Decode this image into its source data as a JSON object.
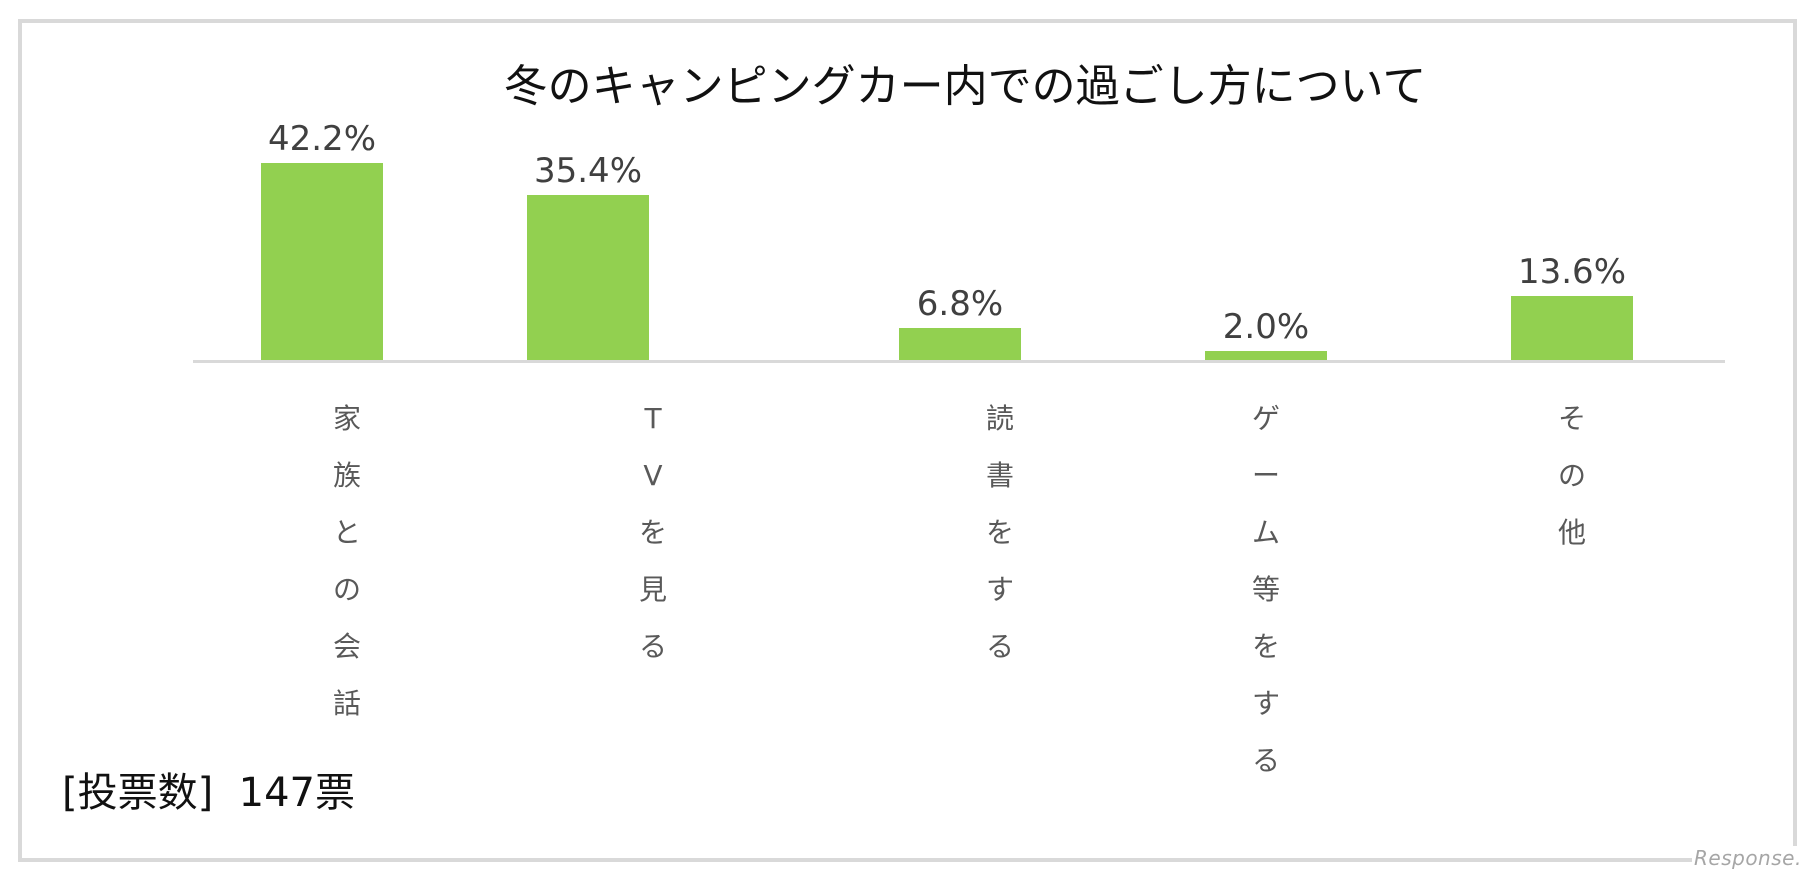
{
  "chart_data": {
    "type": "bar",
    "title": "冬のキャンピングカー内での過ごし方について",
    "categories": [
      "家族との会話",
      "TVを見る",
      "読書をする",
      "ゲーム等をする",
      "その他"
    ],
    "values": [
      42.2,
      35.4,
      6.8,
      2.0,
      13.6
    ],
    "value_labels": [
      "42.2%",
      "35.4%",
      "6.8%",
      "2.0%",
      "13.6%"
    ],
    "unit": "%",
    "xlabel": "",
    "ylabel": "",
    "ylim": [
      0,
      45
    ],
    "grid": false,
    "legend": null,
    "bar_color": "#92d050",
    "label_orientation": "vertical",
    "annotations": [
      "[投票数]  147票"
    ]
  },
  "chart": {
    "title": "冬のキャンピングカー内での過ごし方について",
    "bars": [
      {
        "label_chars": [
          "家",
          "族",
          "と",
          "の",
          "会",
          "話"
        ],
        "value_label": "42.2%"
      },
      {
        "label_chars": [
          "T",
          "V",
          "を",
          "見",
          "る"
        ],
        "value_label": "35.4%"
      },
      {
        "label_chars": [
          "読",
          "書",
          "を",
          "す",
          "る"
        ],
        "value_label": "6.8%"
      },
      {
        "label_chars": [
          "ゲ",
          "ー",
          "ム",
          "等",
          "を",
          "す",
          "る"
        ],
        "value_label": "2.0%"
      },
      {
        "label_chars": [
          "そ",
          "の",
          "他"
        ],
        "value_label": "13.6%"
      }
    ],
    "vote_count": "[投票数]  147票"
  },
  "watermark": "Response.",
  "colors": {
    "bar": "#92d050",
    "axis": "#d9d9d9",
    "frame": "#d9d9d9",
    "value_text": "#404040",
    "category_text": "#595959"
  }
}
